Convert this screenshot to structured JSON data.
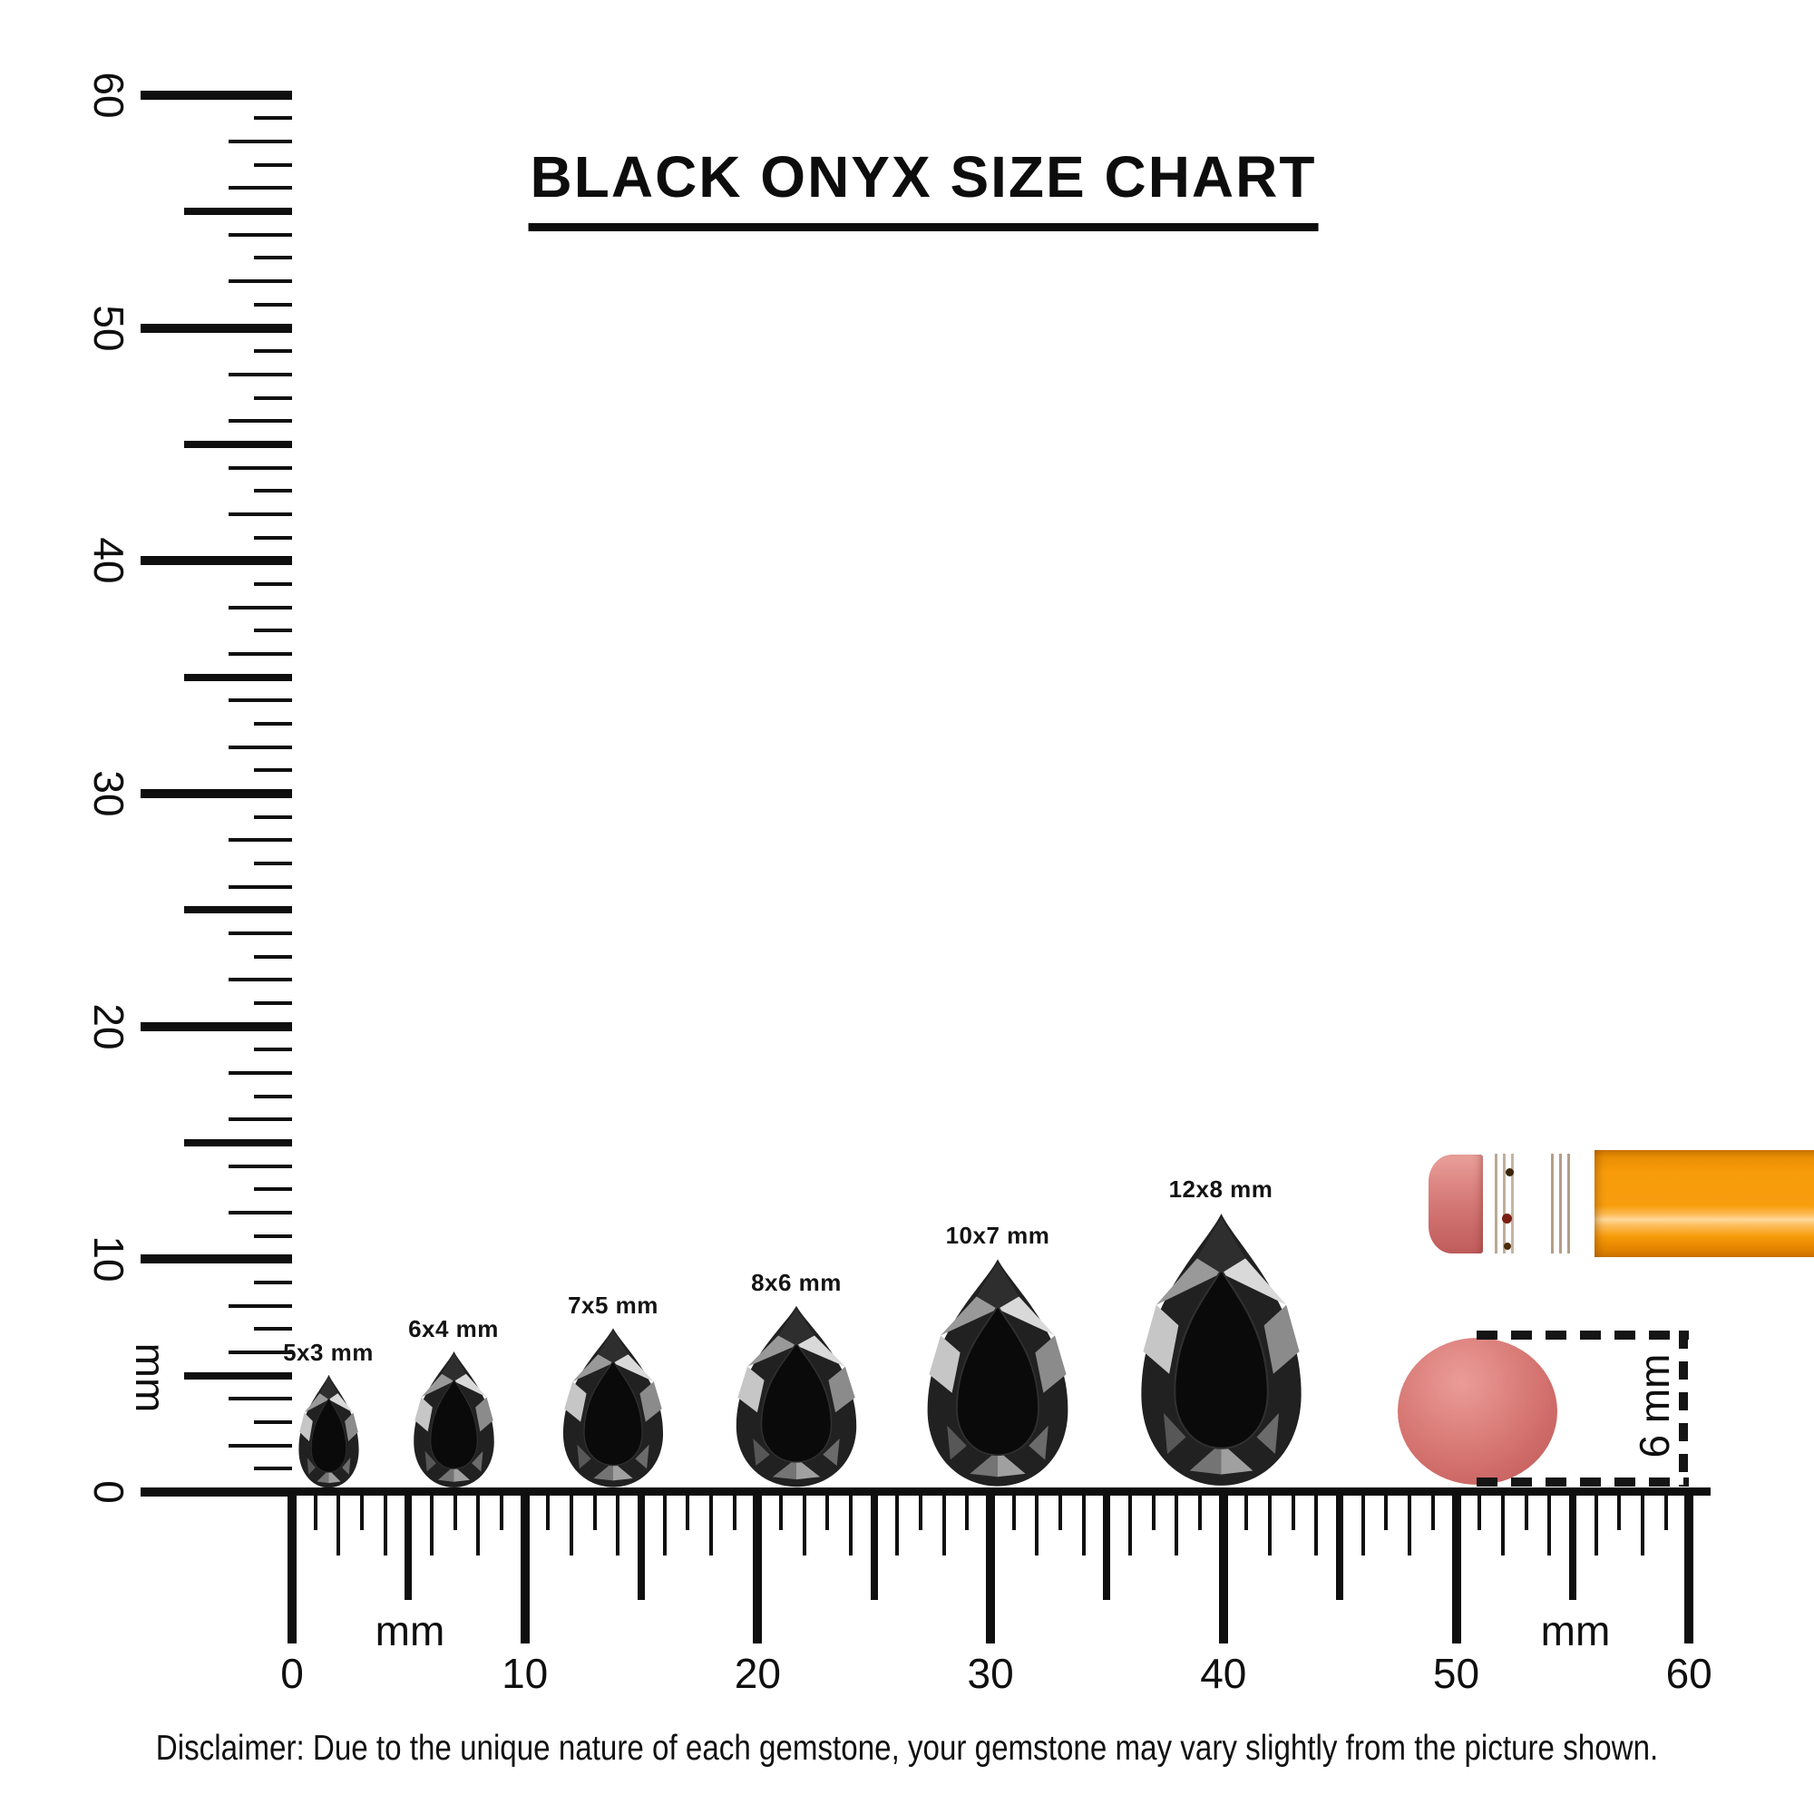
{
  "title": "BLACK ONYX SIZE CHART",
  "rulers": {
    "vertical": {
      "unit_label": "mm",
      "tick_labels": [
        "0",
        "10",
        "20",
        "30",
        "40",
        "50",
        "60"
      ]
    },
    "horizontal": {
      "unit_label_left": "mm",
      "unit_label_right": "mm",
      "tick_labels": [
        "0",
        "10",
        "20",
        "30",
        "40",
        "50",
        "60"
      ]
    }
  },
  "gems": [
    {
      "label": "5x3 mm",
      "width_mm": 3,
      "height_mm": 5
    },
    {
      "label": "6x4 mm",
      "width_mm": 4,
      "height_mm": 6
    },
    {
      "label": "7x5 mm",
      "width_mm": 5,
      "height_mm": 7
    },
    {
      "label": "8x6 mm",
      "width_mm": 6,
      "height_mm": 8
    },
    {
      "label": "10x7 mm",
      "width_mm": 7,
      "height_mm": 10
    },
    {
      "label": "12x8 mm",
      "width_mm": 8,
      "height_mm": 12
    }
  ],
  "eraser_measurement": {
    "label": "6 mm"
  },
  "disclaimer": "Disclaimer: Due to the unique nature of each gemstone, your gemstone may vary slightly from the picture shown.",
  "graphics": {
    "gem_icon": "pear-cut-black-onyx",
    "pencil_icon": "pencil-with-eraser",
    "round_eraser_icon": "round-eraser-top-view"
  },
  "colors": {
    "ink": "#0f0f0f",
    "gem_body": "#212121",
    "gem_table": "#0a0a0a",
    "pencil_orange": "#f89c0f",
    "ferrule_gold": "#d9ab5e",
    "eraser_pink": "#d67c79",
    "round_eraser_pink": "#d67672"
  }
}
